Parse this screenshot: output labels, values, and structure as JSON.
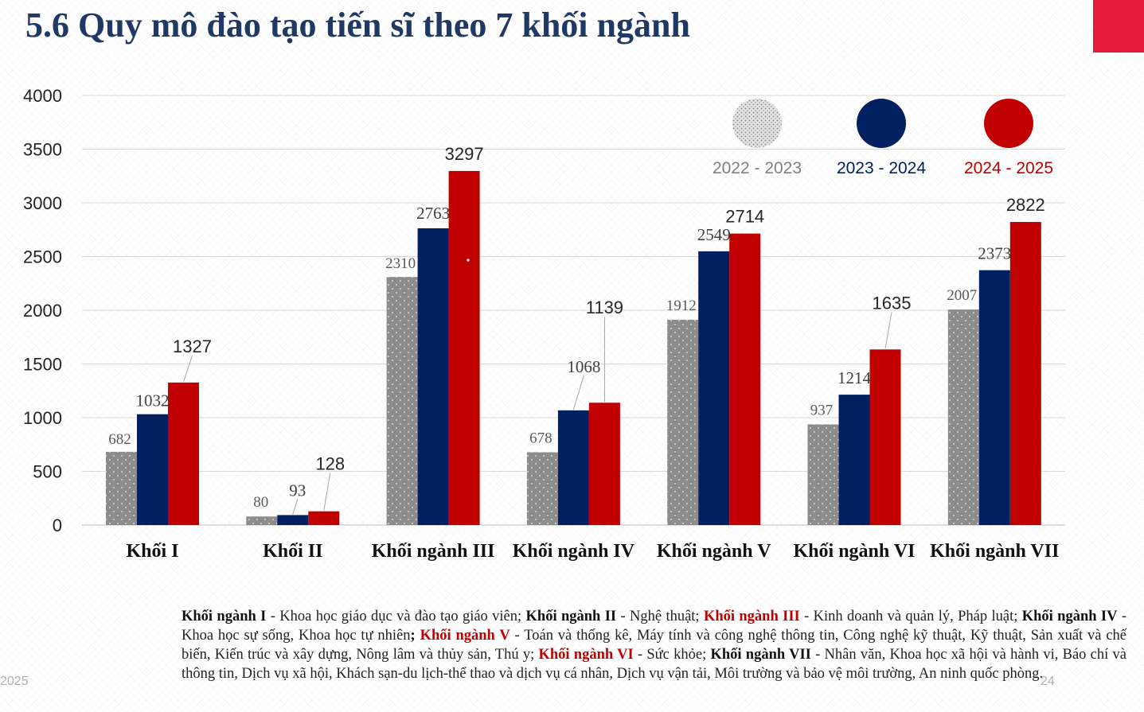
{
  "title": "5.6 Quy mô đào tạo tiến sĩ theo 7 khối ngành",
  "colors": {
    "title": "#1f3864",
    "accent_block": "#e31b3a",
    "series_2022_2023": "#8c8c8c",
    "series_2023_2024": "#002060",
    "series_2024_2025": "#c00000"
  },
  "chart_data": {
    "type": "bar",
    "categories": [
      "Khối I",
      "Khối II",
      "Khối ngành III",
      "Khối ngành IV",
      "Khối ngành V",
      "Khối ngành VI",
      "Khối ngành VII"
    ],
    "series": [
      {
        "name": "2022 - 2023",
        "values": [
          682,
          80,
          2310,
          678,
          1912,
          937,
          2007
        ]
      },
      {
        "name": "2023 - 2024",
        "values": [
          1032,
          93,
          2763,
          1068,
          2549,
          1214,
          2373
        ]
      },
      {
        "name": "2024  - 2025",
        "values": [
          1327,
          128,
          3297,
          1139,
          2714,
          1635,
          2822
        ]
      }
    ],
    "y_ticks": [
      "0",
      "500",
      "1000",
      "1500",
      "2000",
      "2500",
      "3000",
      "3500",
      "4000"
    ],
    "ylim": [
      0,
      4000
    ],
    "grid": true,
    "legend_position": "top-right",
    "xlabel": "",
    "ylabel": ""
  },
  "footnote": {
    "segments": [
      {
        "text": "Khối ngành I",
        "style": "bold"
      },
      {
        "text": " - Khoa học giáo dục và đào tạo giáo viên; ",
        "style": "normal"
      },
      {
        "text": "Khối ngành II",
        "style": "bold"
      },
      {
        "text": " - Nghệ thuật; ",
        "style": "normal"
      },
      {
        "text": "Khối ngành III",
        "style": "bold-red"
      },
      {
        "text": " - Kinh doanh và quản lý, Pháp luật; ",
        "style": "normal"
      },
      {
        "text": "Khối ngành IV",
        "style": "bold"
      },
      {
        "text": " - Khoa học sự sống, Khoa học tự nhiên",
        "style": "normal"
      },
      {
        "text": ";",
        "style": "bold"
      },
      {
        "text": " ",
        "style": "normal"
      },
      {
        "text": "Khối ngành V",
        "style": "bold-red"
      },
      {
        "text": " - Toán và thống kê, Máy tính và công nghệ thông tin, Công nghệ kỹ thuật, Kỹ thuật, Sản xuất và chế biến, Kiến trúc và xây dựng, Nông lâm và thủy sản, Thú y; ",
        "style": "normal"
      },
      {
        "text": "Khối ngành VI",
        "style": "bold-red"
      },
      {
        "text": " - Sức khỏe; ",
        "style": "normal"
      },
      {
        "text": "Khối ngành VII",
        "style": "bold"
      },
      {
        "text": " - Nhân văn, Khoa học xã hội và hành vi, Báo chí và thông tin, Dịch vụ xã hội, Khách sạn-du lịch-thể thao và dịch vụ cá nhân, Dịch vụ vận tải, Môi trường và bảo vệ môi trường, An ninh quốc phòng.",
        "style": "normal"
      }
    ]
  },
  "footer": {
    "year": "2025",
    "page": "24"
  }
}
